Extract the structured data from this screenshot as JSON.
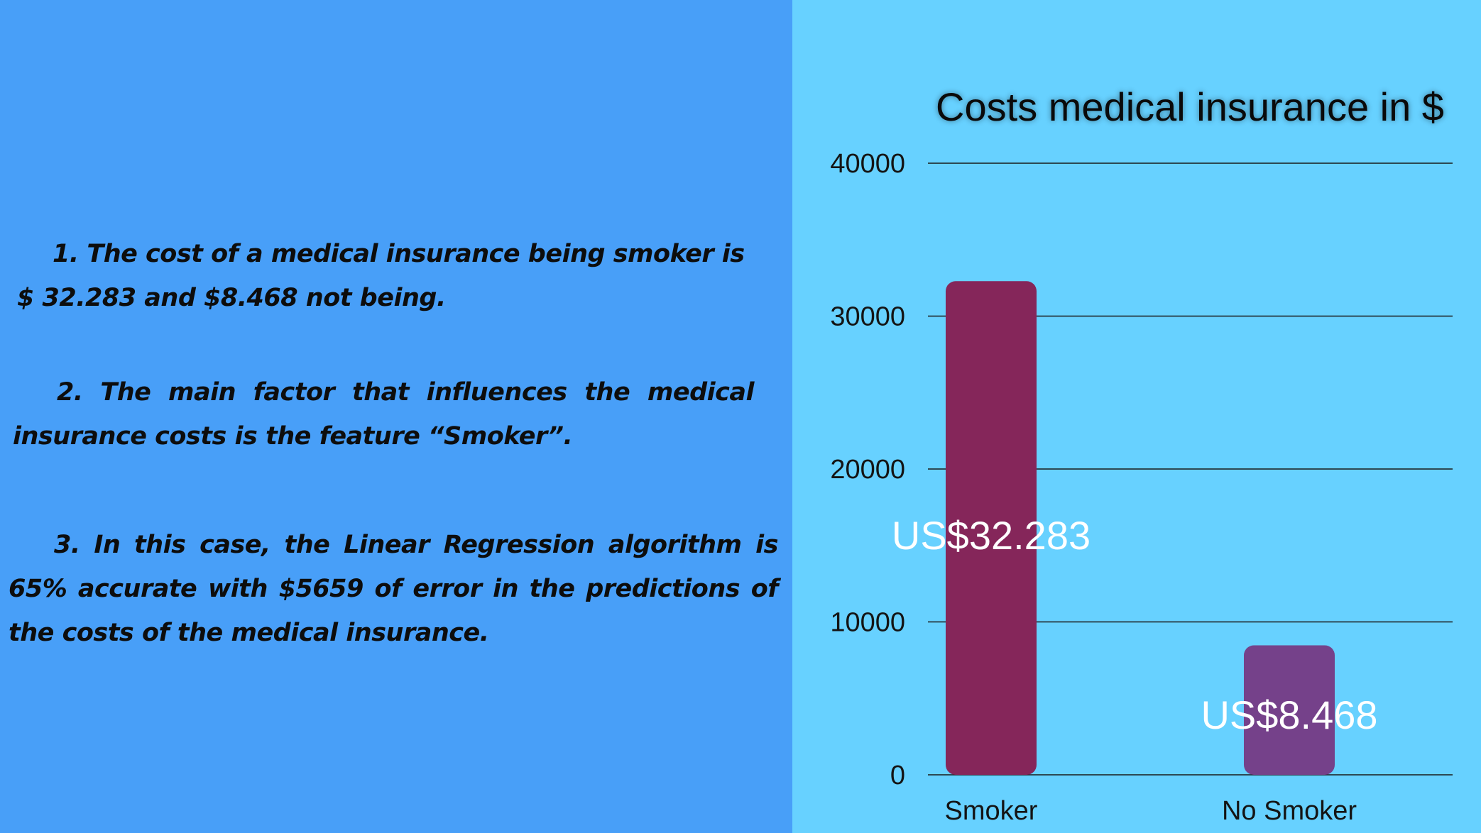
{
  "findings": [
    "1. The cost of a medical insurance being smoker is $ 32.283 and $8.468 not being.",
    "2. The main factor that influences the medical insurance costs is the feature “Smoker”.",
    "3. In this case, the Linear Regression algorithm is 65% accurate with $5659 of error in the predictions of the costs of the medical insurance."
  ],
  "colors": {
    "left_background": "#489ff8",
    "right_background": "#67d1ff",
    "bar_colors": [
      "#85265a",
      "#75418a"
    ],
    "grid_color": "#1a1a1a"
  },
  "chart_data": {
    "type": "bar",
    "title": "Costs medical insurance in $",
    "categories": [
      "Smoker",
      "No Smoker"
    ],
    "values": [
      32283,
      8468
    ],
    "data_labels": [
      "US$32.283",
      "US$8.468"
    ],
    "ylim": [
      0,
      40000
    ],
    "yticks": [
      0,
      10000,
      20000,
      30000,
      40000
    ],
    "ytick_labels": [
      "0",
      "10000",
      "20000",
      "30000",
      "40000"
    ],
    "xlabel": "",
    "ylabel": "",
    "grid": true,
    "legend": "none"
  }
}
